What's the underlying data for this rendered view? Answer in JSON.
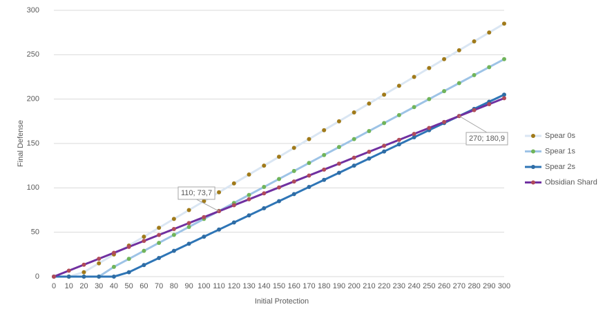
{
  "chart_data": {
    "type": "line",
    "x_label": "Initial Protection",
    "y_label": "Final Defense",
    "x": [
      0,
      10,
      20,
      30,
      40,
      50,
      60,
      70,
      80,
      90,
      100,
      110,
      120,
      130,
      140,
      150,
      160,
      170,
      180,
      190,
      200,
      210,
      220,
      230,
      240,
      250,
      260,
      270,
      280,
      290,
      300
    ],
    "xlim": [
      0,
      300
    ],
    "xticks": [
      0,
      10,
      20,
      30,
      40,
      50,
      60,
      70,
      80,
      90,
      100,
      110,
      120,
      130,
      140,
      150,
      160,
      170,
      180,
      190,
      200,
      210,
      220,
      230,
      240,
      250,
      260,
      270,
      280,
      290,
      300
    ],
    "ylim": [
      0,
      300
    ],
    "yticks": [
      0,
      50,
      100,
      150,
      200,
      250,
      300
    ],
    "grid": true,
    "legend": "right",
    "series": [
      {
        "name": "Spear 0s",
        "color": "#dae6f3",
        "marker_color": "#a07a1a",
        "values": [
          0,
          0,
          5,
          15,
          25,
          35,
          45,
          55,
          65,
          75,
          85,
          95,
          105,
          115,
          125,
          135,
          145,
          155,
          165,
          175,
          185,
          195,
          205,
          215,
          225,
          235,
          245,
          255,
          265,
          275,
          285
        ]
      },
      {
        "name": "Spear 1s",
        "color": "#9dc3e6",
        "marker_color": "#70b45a",
        "values": [
          0,
          0,
          0,
          0,
          11,
          20,
          29,
          38,
          47,
          56,
          65,
          74,
          83,
          92,
          101,
          110,
          119,
          128,
          137,
          146,
          155,
          164,
          173,
          182,
          191,
          200,
          209,
          218,
          227,
          236,
          245
        ]
      },
      {
        "name": "Spear 2s",
        "color": "#2e75b6",
        "marker_color": "#2e6ca4",
        "values": [
          0,
          0,
          0,
          0,
          0,
          5,
          13,
          21,
          29,
          37,
          45,
          53,
          61,
          69,
          77,
          85,
          93,
          101,
          109,
          117,
          125,
          133,
          141,
          149,
          157,
          165,
          173,
          181,
          189,
          197,
          205
        ]
      },
      {
        "name": "Obsidian Shard",
        "color": "#7030a0",
        "marker_color": "#b04a5a",
        "values": [
          0,
          6.7,
          13.4,
          20.1,
          26.8,
          33.5,
          40.2,
          46.9,
          53.6,
          60.3,
          67,
          73.7,
          80.4,
          87.1,
          93.8,
          100.5,
          107.2,
          113.9,
          120.6,
          127.3,
          134,
          140.7,
          147.4,
          154.1,
          160.8,
          167.5,
          174.2,
          180.9,
          187.6,
          194.3,
          201
        ]
      }
    ],
    "annotations": [
      "110; 73,7",
      "270; 180,9"
    ]
  }
}
